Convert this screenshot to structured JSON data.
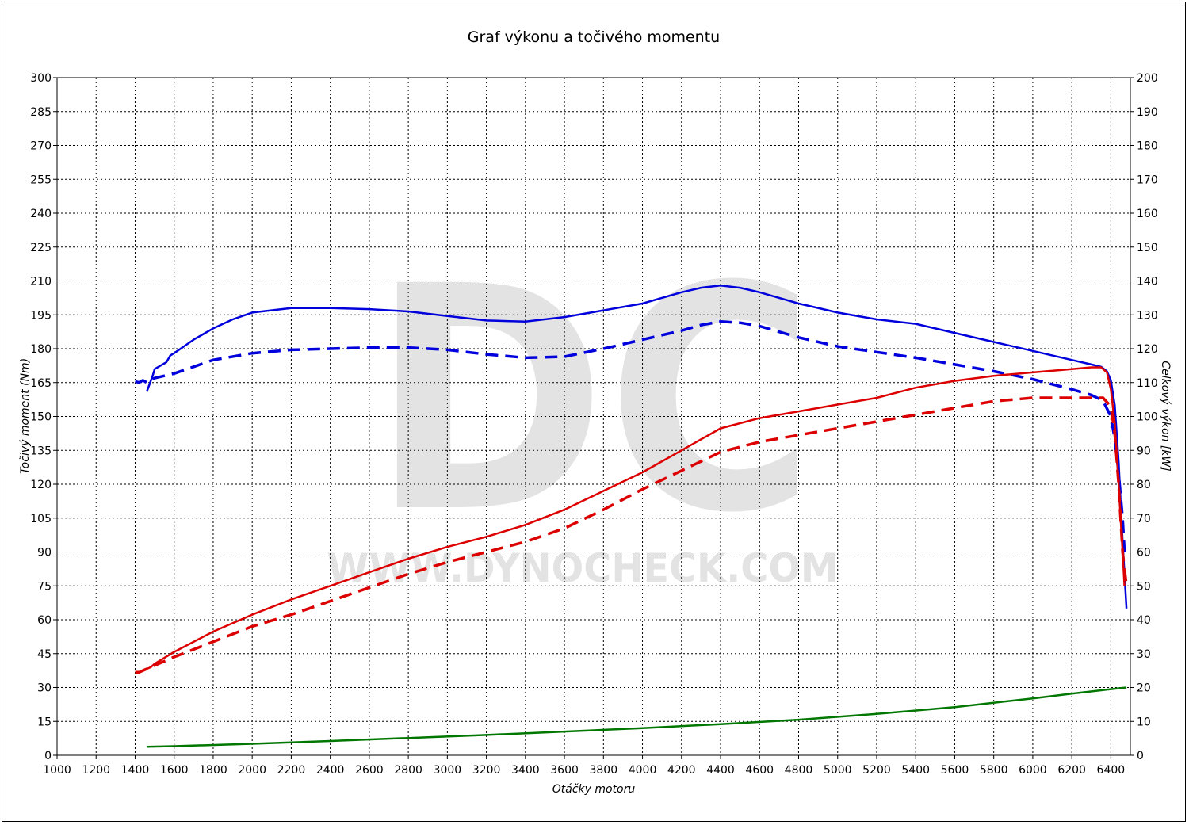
{
  "chart_data": {
    "type": "line",
    "title": "Graf výkonu a točivého momentu",
    "xlabel": "Otáčky motoru",
    "ylabel_left": "Točivý moment (Nm)",
    "ylabel_right": "Celkový výkon [kW]",
    "xlim": [
      1000,
      6500
    ],
    "ylim_left": [
      0,
      300
    ],
    "ylim_right": [
      0,
      200
    ],
    "x_ticks": [
      1000,
      1200,
      1400,
      1600,
      1800,
      2000,
      2200,
      2400,
      2600,
      2800,
      3000,
      3200,
      3400,
      3600,
      3800,
      4000,
      4200,
      4400,
      4600,
      4800,
      5000,
      5200,
      5400,
      5600,
      5800,
      6000,
      6200,
      6400
    ],
    "y_ticks_left": [
      0,
      15,
      30,
      45,
      60,
      75,
      90,
      105,
      120,
      135,
      150,
      165,
      180,
      195,
      210,
      225,
      240,
      255,
      270,
      285,
      300
    ],
    "y_ticks_right": [
      0,
      10,
      20,
      30,
      40,
      50,
      60,
      70,
      80,
      90,
      100,
      110,
      120,
      130,
      140,
      150,
      160,
      170,
      180,
      190,
      200
    ],
    "grid": true,
    "watermark": {
      "logo": "DC",
      "text": "WWW.DYNOCHECK.COM"
    },
    "series": [
      {
        "axis": "left",
        "color": "#0000dd",
        "style": "solid",
        "x": [
          1460,
          1490,
          1500,
          1520,
          1560,
          1580,
          1600,
          1650,
          1700,
          1800,
          1900,
          2000,
          2200,
          2400,
          2600,
          2800,
          3000,
          3200,
          3400,
          3600,
          3800,
          4000,
          4200,
          4300,
          4400,
          4500,
          4600,
          4800,
          5000,
          5200,
          5400,
          5600,
          5800,
          6000,
          6200,
          6300,
          6350,
          6380,
          6400,
          6420,
          6440,
          6460,
          6480
        ],
        "y": [
          161,
          168,
          171,
          172,
          174,
          177,
          178,
          181,
          184,
          189,
          193,
          196,
          198,
          198,
          197.5,
          196.5,
          194.5,
          192.5,
          192,
          194,
          197,
          200,
          205,
          207,
          208,
          207,
          205,
          200,
          196,
          193,
          191,
          187,
          183,
          179,
          175,
          173,
          172,
          170,
          166,
          155,
          130,
          95,
          65
        ]
      },
      {
        "axis": "left",
        "color": "#0000dd",
        "style": "dashed",
        "x": [
          1400,
          1420,
          1440,
          1460,
          1500,
          1600,
          1700,
          1800,
          2000,
          2200,
          2400,
          2600,
          2800,
          3000,
          3200,
          3400,
          3600,
          3800,
          4000,
          4200,
          4300,
          4400,
          4500,
          4600,
          4800,
          5000,
          5200,
          5400,
          5600,
          5800,
          6000,
          6200,
          6300,
          6360,
          6400,
          6420,
          6440,
          6460,
          6470
        ],
        "y": [
          165.5,
          165,
          166,
          165,
          167,
          169,
          172,
          175,
          178,
          179.5,
          180,
          180.5,
          180.5,
          179.5,
          177.5,
          176,
          176.5,
          180,
          184,
          188,
          190.5,
          192,
          191.5,
          190,
          185,
          181,
          178.5,
          176,
          173,
          170,
          166.5,
          162,
          159.5,
          157,
          150,
          140,
          125,
          105,
          90
        ]
      },
      {
        "axis": "right",
        "color": "#dd0000",
        "style": "solid",
        "x": [
          1460,
          1480,
          1500,
          1600,
          1800,
          2000,
          2200,
          2400,
          2600,
          2800,
          3000,
          3200,
          3400,
          3600,
          3800,
          4000,
          4200,
          4400,
          4600,
          4800,
          5000,
          5200,
          5400,
          5600,
          5800,
          6000,
          6200,
          6300,
          6350,
          6380,
          6400,
          6420,
          6440,
          6460,
          6470
        ],
        "y": [
          25.5,
          26,
          27,
          30.5,
          36.5,
          41.5,
          46,
          50,
          54,
          58,
          61.5,
          64.5,
          68,
          72.5,
          78,
          83.5,
          90,
          96.5,
          99.5,
          101.5,
          103.5,
          105.5,
          108.5,
          110.5,
          112,
          113,
          114,
          114.5,
          114.5,
          113,
          108,
          98,
          80,
          60,
          50
        ]
      },
      {
        "axis": "right",
        "color": "#dd0000",
        "style": "dashed",
        "x": [
          1400,
          1420,
          1440,
          1460,
          1500,
          1600,
          1800,
          2000,
          2200,
          2400,
          2600,
          2800,
          3000,
          3200,
          3400,
          3600,
          3800,
          4000,
          4200,
          4400,
          4600,
          4800,
          5000,
          5200,
          5400,
          5600,
          5800,
          6000,
          6200,
          6300,
          6360,
          6400,
          6420,
          6440,
          6460,
          6480
        ],
        "y": [
          24.5,
          24.5,
          25,
          25.5,
          26.5,
          29,
          33.5,
          38,
          41.5,
          45.5,
          49.5,
          53.5,
          57,
          60,
          63,
          67,
          72.5,
          78.5,
          84,
          89.5,
          92.5,
          94.5,
          96.5,
          98.5,
          100.5,
          102.5,
          104.5,
          105.5,
          105.5,
          105.5,
          105.5,
          103,
          95,
          80,
          60,
          50
        ]
      },
      {
        "axis": "right",
        "color": "#007700",
        "style": "solid",
        "x": [
          1460,
          1600,
          2000,
          2400,
          2800,
          3200,
          3600,
          4000,
          4400,
          4800,
          5200,
          5600,
          6000,
          6200,
          6400,
          6480
        ],
        "y": [
          2.5,
          2.7,
          3.4,
          4.2,
          5.1,
          6.0,
          7.0,
          8.0,
          9.2,
          10.5,
          12.2,
          14.2,
          16.8,
          18.2,
          19.5,
          20
        ]
      }
    ]
  }
}
